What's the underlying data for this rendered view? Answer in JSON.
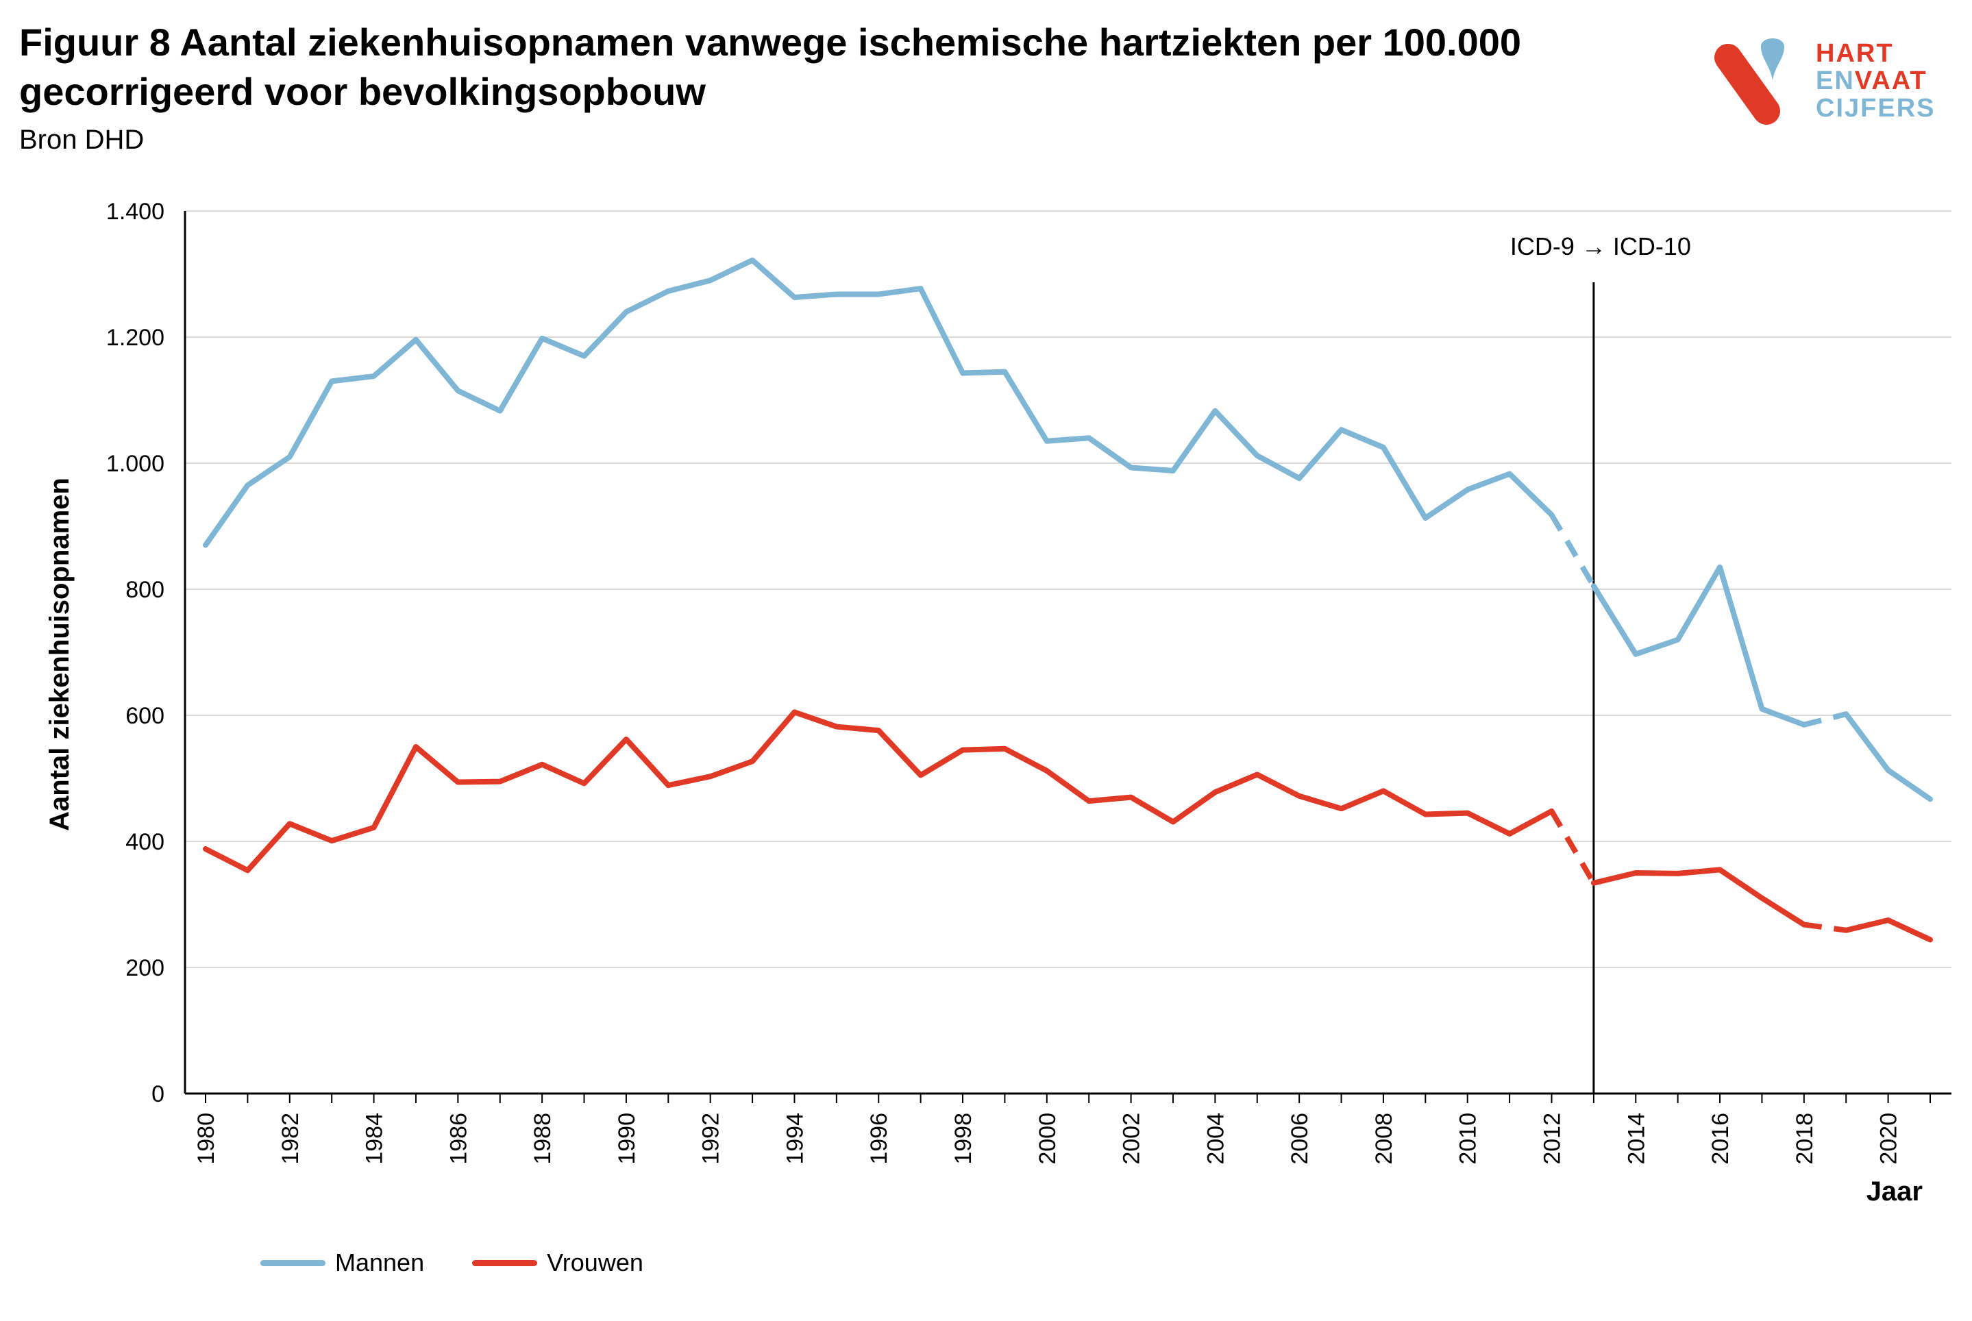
{
  "header": {
    "title": "Figuur 8 Aantal ziekenhuisopnamen vanwege ischemische hartziekten per 100.000 gecorrigeerd voor bevolkingsopbouw",
    "source": "Bron DHD"
  },
  "logo": {
    "line1": "HART",
    "line2a": "EN",
    "line2b": "VAAT",
    "line3": "CIJFERS",
    "colors": {
      "red": "#e03a26",
      "blue": "#7fb5d5"
    }
  },
  "chart_data": {
    "type": "line",
    "title": "Figuur 8 Aantal ziekenhuisopnamen vanwege ischemische hartziekten per 100.000 gecorrigeerd voor bevolkingsopbouw",
    "xlabel": "Jaar",
    "ylabel": "Aantal ziekenhuisopnamen",
    "ylim": [
      0,
      1400
    ],
    "xlim": [
      1980,
      2021
    ],
    "yticks": [
      0,
      200,
      400,
      600,
      800,
      1000,
      1200,
      1400
    ],
    "ytick_labels": [
      "0",
      "200",
      "400",
      "600",
      "800",
      "1.000",
      "1.200",
      "1.400"
    ],
    "xticks": [
      1980,
      1982,
      1984,
      1986,
      1988,
      1990,
      1992,
      1994,
      1996,
      1998,
      2000,
      2002,
      2004,
      2006,
      2008,
      2010,
      2012,
      2014,
      2016,
      2018,
      2020
    ],
    "grid": "horizontal",
    "legend_position": "bottom-left",
    "annotation": {
      "text": "ICD-9 → ICD-10",
      "x": 2013
    },
    "dashed_segments": [
      [
        2012,
        2013
      ],
      [
        2018,
        2019
      ]
    ],
    "x": [
      1980,
      1981,
      1982,
      1983,
      1984,
      1985,
      1986,
      1987,
      1988,
      1989,
      1990,
      1991,
      1992,
      1993,
      1994,
      1995,
      1996,
      1997,
      1998,
      1999,
      2000,
      2001,
      2002,
      2003,
      2004,
      2005,
      2006,
      2007,
      2008,
      2009,
      2010,
      2011,
      2012,
      2013,
      2014,
      2015,
      2016,
      2017,
      2018,
      2019,
      2020,
      2021
    ],
    "series": [
      {
        "name": "Mannen",
        "color": "#7fb5d5",
        "values": [
          870,
          965,
          1010,
          1130,
          1138,
          1196,
          1115,
          1083,
          1198,
          1170,
          1240,
          1273,
          1290,
          1322,
          1263,
          1268,
          1268,
          1277,
          1143,
          1145,
          1035,
          1040,
          993,
          988,
          1083,
          1012,
          976,
          1053,
          1025,
          913,
          958,
          983,
          918,
          805,
          697,
          720,
          835,
          610,
          585,
          602,
          513,
          467
        ]
      },
      {
        "name": "Vrouwen",
        "color": "#e03a26",
        "values": [
          388,
          354,
          428,
          401,
          422,
          550,
          494,
          495,
          522,
          492,
          562,
          489,
          503,
          527,
          605,
          582,
          576,
          505,
          545,
          547,
          512,
          464,
          470,
          431,
          478,
          506,
          472,
          452,
          480,
          443,
          445,
          412,
          448,
          334,
          350,
          349,
          355,
          310,
          268,
          259,
          275,
          244
        ]
      }
    ]
  }
}
